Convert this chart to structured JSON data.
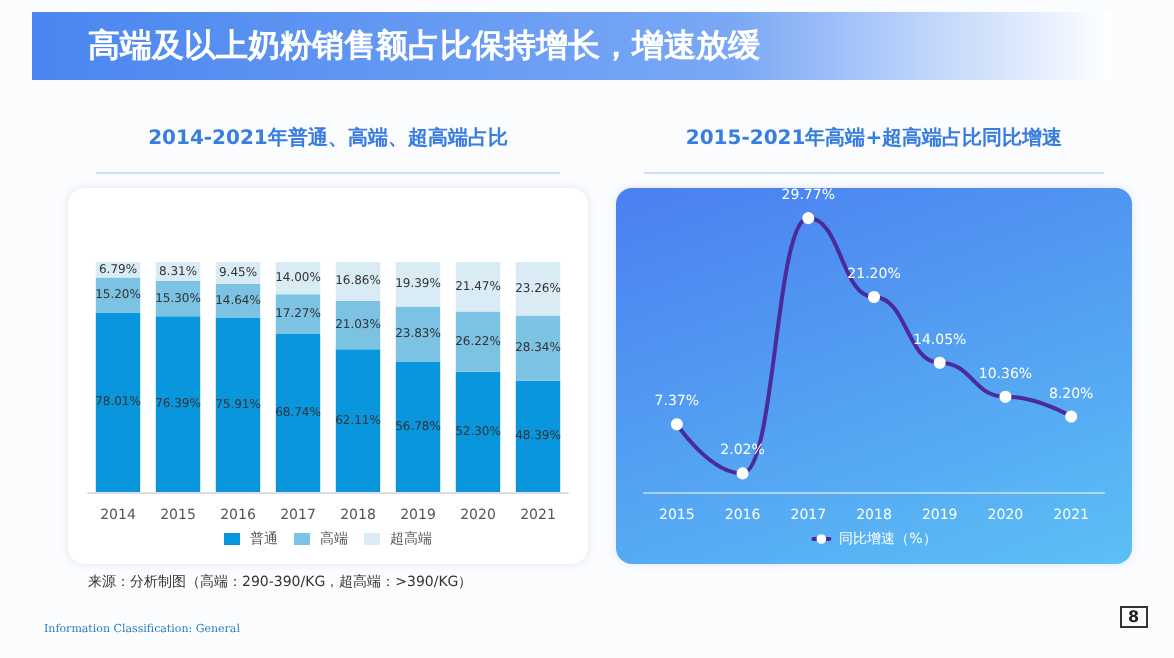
{
  "chart_data": [
    {
      "type": "bar",
      "title": "2014-2021年普通、高端、超高端占比",
      "stacked": true,
      "legend": "bottom",
      "grid": false,
      "annotations": [
        "高端及以上奶粉销售额占比保持增长，增速放缓",
        "来源：分析制图（高端：290-390/KG，超高端：>390/KG）",
        "Information Classification: General",
        "8"
      ],
      "categories": [
        "2014",
        "2015",
        "2016",
        "2017",
        "2018",
        "2019",
        "2020",
        "2021"
      ],
      "series": [
        {
          "name": "普通",
          "color": "#0a96dc",
          "values": [
            78.01,
            76.39,
            75.91,
            68.74,
            62.11,
            56.78,
            52.3,
            48.39
          ],
          "value_labels": [
            "78.01%",
            "76.39%",
            "75.91%",
            "68.74%",
            "62.11%",
            "56.78%",
            "52.30%",
            "48.39%"
          ]
        },
        {
          "name": "高端",
          "color": "#7cc2e3",
          "values": [
            15.2,
            15.3,
            14.64,
            17.27,
            21.03,
            23.83,
            26.22,
            28.34
          ],
          "value_labels": [
            "15.20%",
            "15.30%",
            "14.64%",
            "17.27%",
            "21.03%",
            "23.83%",
            "26.22%",
            "28.34%"
          ]
        },
        {
          "name": "超高端",
          "color": "#d9ebf5",
          "values": [
            6.79,
            8.31,
            9.45,
            14.0,
            16.86,
            19.39,
            21.47,
            23.26
          ],
          "value_labels": [
            "6.79%",
            "8.31%",
            "9.45%",
            "14.00%",
            "16.86%",
            "19.39%",
            "21.47%",
            "23.26%"
          ]
        }
      ]
    },
    {
      "type": "line",
      "title": "2015-2021年高端+超高端占比同比增速",
      "legend": "bottom",
      "grid": false,
      "marker": "circle",
      "line_style": "solid",
      "categories": [
        "2015",
        "2016",
        "2017",
        "2018",
        "2019",
        "2020",
        "2021"
      ],
      "series": [
        {
          "name": "同比增速（%）",
          "color": "#4b2a9a",
          "values": [
            7.37,
            2.02,
            29.77,
            21.2,
            14.05,
            10.36,
            8.2
          ],
          "value_labels": [
            "7.37%",
            "2.02%",
            "29.77%",
            "21.20%",
            "14.05%",
            "10.36%",
            "8.20%"
          ]
        }
      ]
    }
  ]
}
